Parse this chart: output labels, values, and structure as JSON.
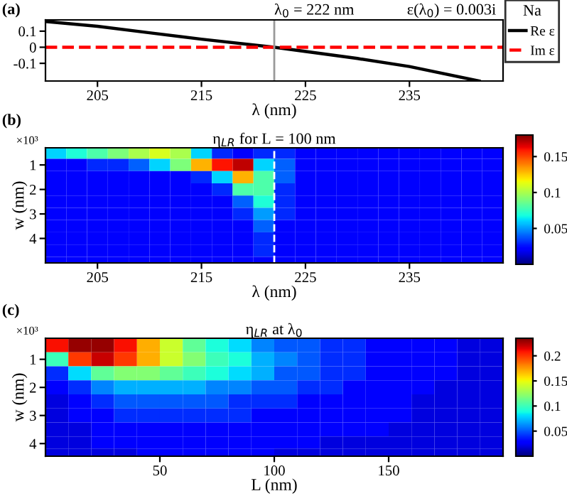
{
  "chart_data": [
    {
      "type": "line",
      "xlabel": "λ (nm)",
      "xlim": [
        200,
        244
      ],
      "xticks": [
        205,
        215,
        225,
        235
      ],
      "ylim": [
        -0.21,
        0.17
      ],
      "yticks": [
        {
          "value": 0.1,
          "label": "0.1"
        },
        {
          "value": 0,
          "label": "0"
        },
        {
          "value": -0.1,
          "label": "-0.1"
        }
      ],
      "series": [
        {
          "name": "Re ε",
          "color": "#000000",
          "line_style": "solid",
          "x": [
            200,
            205,
            210,
            215,
            222,
            230,
            235,
            241.7
          ],
          "values": [
            0.16,
            0.13,
            0.09,
            0.05,
            0,
            -0.07,
            -0.12,
            -0.21
          ]
        },
        {
          "name": "Im ε",
          "color": "#ff0000",
          "line_style": "dashed",
          "x": [
            200,
            244
          ],
          "values": [
            0,
            0
          ]
        }
      ],
      "legend": "right",
      "legend_title": "Na",
      "marker": "none",
      "grid": false,
      "ref_lines": [
        {
          "axis": "x",
          "value": 222,
          "label": "λ$_{0}$ = 222 nm",
          "color": "#999999",
          "line_style": "solid"
        }
      ],
      "annotations": [
        "(a)",
        "ε(λ$_{0}$) = 0.003i"
      ]
    },
    {
      "type": "heatmap",
      "title": "η$_{LR}$ for L = 100 nm",
      "xlabel": "λ (nm)",
      "ylabel": "w (nm)",
      "xlim": [
        200,
        244
      ],
      "xticks": [
        205,
        215,
        225,
        235
      ],
      "ylim": [
        5,
        0.3
      ],
      "yticks": [
        1,
        2,
        3,
        4
      ],
      "clim": [
        0,
        0.18
      ],
      "cticks": [
        0.05,
        0.1,
        0.15
      ],
      "x": [
        201,
        203,
        205,
        207,
        209,
        211,
        213,
        215,
        217,
        219,
        221,
        223,
        225,
        227,
        229,
        231,
        233,
        235,
        237,
        239,
        241,
        243
      ],
      "y": [
        0.5,
        1,
        1.5,
        2,
        2.5,
        3,
        3.5,
        4,
        4.5,
        5
      ],
      "cells": [
        [
          0.06,
          0.07,
          0.08,
          0.09,
          0.1,
          0.11,
          0.1,
          0.06,
          0.03,
          0.02,
          0.03,
          0.03,
          0.02,
          0.02,
          0.02,
          0.02,
          0.02,
          0.02,
          0.02,
          0.02,
          0.02,
          0.02
        ],
        [
          0.02,
          0.02,
          0.03,
          0.03,
          0.04,
          0.06,
          0.09,
          0.13,
          0.16,
          0.17,
          0.06,
          0.04,
          0.02,
          0.02,
          0.02,
          0.02,
          0.02,
          0.02,
          0.02,
          0.02,
          0.02,
          0.02
        ],
        [
          0.02,
          0.02,
          0.02,
          0.02,
          0.02,
          0.02,
          0.02,
          0.03,
          0.06,
          0.13,
          0.08,
          0.04,
          0.02,
          0.02,
          0.02,
          0.02,
          0.02,
          0.02,
          0.02,
          0.02,
          0.02,
          0.02
        ],
        [
          0.02,
          0.02,
          0.02,
          0.02,
          0.02,
          0.02,
          0.02,
          0.02,
          0.03,
          0.08,
          0.08,
          0.03,
          0.02,
          0.02,
          0.02,
          0.02,
          0.02,
          0.02,
          0.02,
          0.02,
          0.02,
          0.02
        ],
        [
          0.02,
          0.02,
          0.02,
          0.02,
          0.02,
          0.02,
          0.02,
          0.02,
          0.02,
          0.04,
          0.07,
          0.03,
          0.02,
          0.02,
          0.02,
          0.02,
          0.02,
          0.02,
          0.02,
          0.02,
          0.02,
          0.02
        ],
        [
          0.02,
          0.02,
          0.02,
          0.02,
          0.02,
          0.02,
          0.02,
          0.02,
          0.02,
          0.03,
          0.05,
          0.03,
          0.02,
          0.02,
          0.02,
          0.02,
          0.02,
          0.02,
          0.02,
          0.02,
          0.02,
          0.02
        ],
        [
          0.02,
          0.02,
          0.02,
          0.02,
          0.02,
          0.02,
          0.02,
          0.02,
          0.02,
          0.02,
          0.04,
          0.02,
          0.02,
          0.02,
          0.02,
          0.02,
          0.02,
          0.02,
          0.02,
          0.02,
          0.02,
          0.02
        ],
        [
          0.02,
          0.02,
          0.02,
          0.02,
          0.02,
          0.02,
          0.02,
          0.02,
          0.02,
          0.02,
          0.03,
          0.02,
          0.02,
          0.02,
          0.02,
          0.02,
          0.02,
          0.02,
          0.02,
          0.02,
          0.02,
          0.02
        ],
        [
          0.02,
          0.02,
          0.02,
          0.02,
          0.02,
          0.02,
          0.02,
          0.02,
          0.02,
          0.02,
          0.03,
          0.02,
          0.02,
          0.02,
          0.02,
          0.02,
          0.02,
          0.02,
          0.02,
          0.02,
          0.02,
          0.02
        ],
        [
          0.02,
          0.02,
          0.02,
          0.02,
          0.02,
          0.02,
          0.02,
          0.02,
          0.02,
          0.02,
          0.02,
          0.02,
          0.02,
          0.02,
          0.02,
          0.02,
          0.02,
          0.02,
          0.02,
          0.02,
          0.02,
          0.02
        ]
      ],
      "ref_lines": [
        {
          "axis": "x",
          "value": 222,
          "color": "#ffffff",
          "line_style": "dashed"
        }
      ],
      "annotations": [
        "(b)",
        "×10³"
      ]
    },
    {
      "type": "heatmap",
      "title": "η$_{LR}$ at λ$_{0}$",
      "xlabel": "L (nm)",
      "ylabel": "w (nm)",
      "xlim": [
        0,
        200
      ],
      "xticks": [
        50,
        100,
        150
      ],
      "ylim": [
        4.45,
        0.25
      ],
      "yticks": [
        1,
        2,
        3,
        4
      ],
      "clim": [
        0,
        0.235
      ],
      "cticks": [
        0.05,
        0.1,
        0.15,
        0.2
      ],
      "x": [
        5,
        15,
        25,
        35,
        45,
        55,
        65,
        75,
        85,
        95,
        105,
        115,
        125,
        135,
        145,
        155,
        165,
        175,
        185,
        195
      ],
      "y": [
        0.5,
        1,
        1.5,
        2,
        2.5,
        3,
        3.5,
        4,
        4.35
      ],
      "cells": [
        [
          0.21,
          0.23,
          0.23,
          0.21,
          0.17,
          0.14,
          0.11,
          0.09,
          0.08,
          0.06,
          0.05,
          0.05,
          0.04,
          0.04,
          0.03,
          0.03,
          0.03,
          0.03,
          0.02,
          0.02
        ],
        [
          0.1,
          0.2,
          0.22,
          0.2,
          0.17,
          0.14,
          0.12,
          0.1,
          0.09,
          0.07,
          0.06,
          0.05,
          0.04,
          0.04,
          0.03,
          0.03,
          0.03,
          0.03,
          0.02,
          0.02
        ],
        [
          0.04,
          0.08,
          0.11,
          0.12,
          0.12,
          0.11,
          0.1,
          0.09,
          0.08,
          0.07,
          0.05,
          0.05,
          0.04,
          0.04,
          0.03,
          0.03,
          0.03,
          0.03,
          0.02,
          0.02
        ],
        [
          0.03,
          0.04,
          0.06,
          0.07,
          0.07,
          0.07,
          0.07,
          0.06,
          0.06,
          0.05,
          0.05,
          0.04,
          0.04,
          0.03,
          0.03,
          0.03,
          0.03,
          0.02,
          0.02,
          0.02
        ],
        [
          0.02,
          0.03,
          0.04,
          0.05,
          0.05,
          0.05,
          0.05,
          0.05,
          0.04,
          0.04,
          0.04,
          0.03,
          0.03,
          0.03,
          0.03,
          0.03,
          0.02,
          0.02,
          0.02,
          0.02
        ],
        [
          0.02,
          0.03,
          0.03,
          0.04,
          0.04,
          0.04,
          0.04,
          0.04,
          0.04,
          0.03,
          0.03,
          0.03,
          0.03,
          0.03,
          0.03,
          0.03,
          0.02,
          0.02,
          0.02,
          0.02
        ],
        [
          0.02,
          0.02,
          0.03,
          0.03,
          0.03,
          0.03,
          0.03,
          0.03,
          0.03,
          0.03,
          0.03,
          0.03,
          0.03,
          0.03,
          0.03,
          0.02,
          0.02,
          0.02,
          0.02,
          0.02
        ],
        [
          0.02,
          0.02,
          0.03,
          0.03,
          0.03,
          0.03,
          0.03,
          0.03,
          0.03,
          0.03,
          0.03,
          0.03,
          0.02,
          0.02,
          0.02,
          0.02,
          0.02,
          0.02,
          0.02,
          0.02
        ],
        [
          0.02,
          0.02,
          0.02,
          0.02,
          0.03,
          0.03,
          0.03,
          0.03,
          0.03,
          0.03,
          0.02,
          0.02,
          0.02,
          0.02,
          0.02,
          0.02,
          0.02,
          0.02,
          0.02,
          0.02
        ]
      ],
      "annotations": [
        "(c)",
        "×10³"
      ]
    }
  ]
}
